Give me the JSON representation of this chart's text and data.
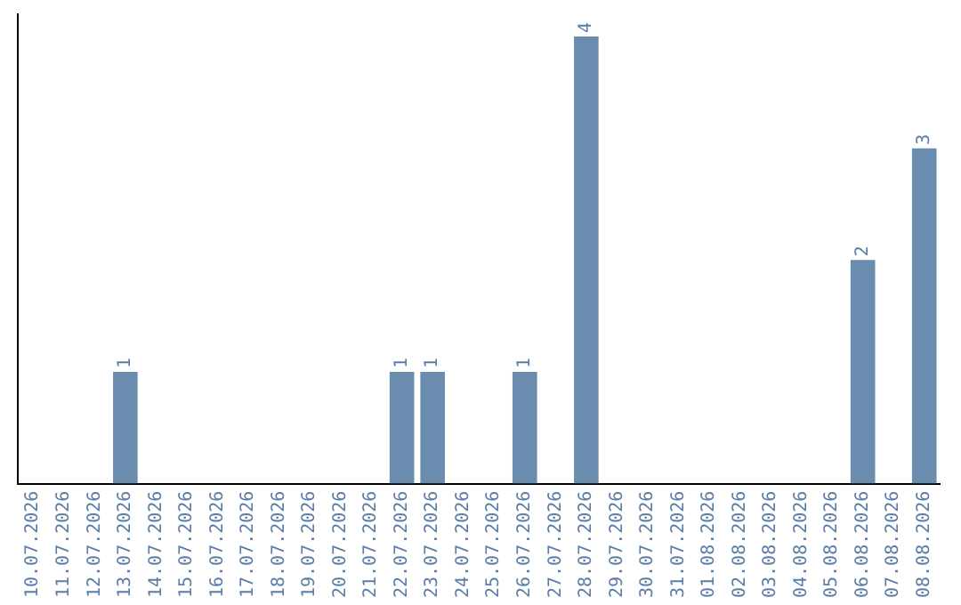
{
  "chart_data": {
    "type": "bar",
    "categories": [
      "10.07.2026",
      "11.07.2026",
      "12.07.2026",
      "13.07.2026",
      "14.07.2026",
      "15.07.2026",
      "16.07.2026",
      "17.07.2026",
      "18.07.2026",
      "19.07.2026",
      "20.07.2026",
      "21.07.2026",
      "22.07.2026",
      "23.07.2026",
      "24.07.2026",
      "25.07.2026",
      "26.07.2026",
      "27.07.2026",
      "28.07.2026",
      "29.07.2026",
      "30.07.2026",
      "31.07.2026",
      "01.08.2026",
      "02.08.2026",
      "03.08.2026",
      "04.08.2026",
      "05.08.2026",
      "06.08.2026",
      "07.08.2026",
      "08.08.2026"
    ],
    "values": [
      0,
      0,
      0,
      1,
      0,
      0,
      0,
      0,
      0,
      0,
      0,
      0,
      1,
      1,
      0,
      0,
      1,
      0,
      4,
      0,
      0,
      0,
      0,
      0,
      0,
      0,
      0,
      2,
      0,
      3
    ],
    "value_labels": [
      null,
      null,
      null,
      "1",
      null,
      null,
      null,
      null,
      null,
      null,
      null,
      null,
      "1",
      "1",
      null,
      null,
      "1",
      null,
      "4",
      null,
      null,
      null,
      null,
      null,
      null,
      null,
      null,
      "2",
      null,
      "3"
    ],
    "color": "#6a8caf",
    "ylim": [
      0,
      4.2
    ],
    "tick_labels": "x",
    "grid": false,
    "legend": false
  }
}
